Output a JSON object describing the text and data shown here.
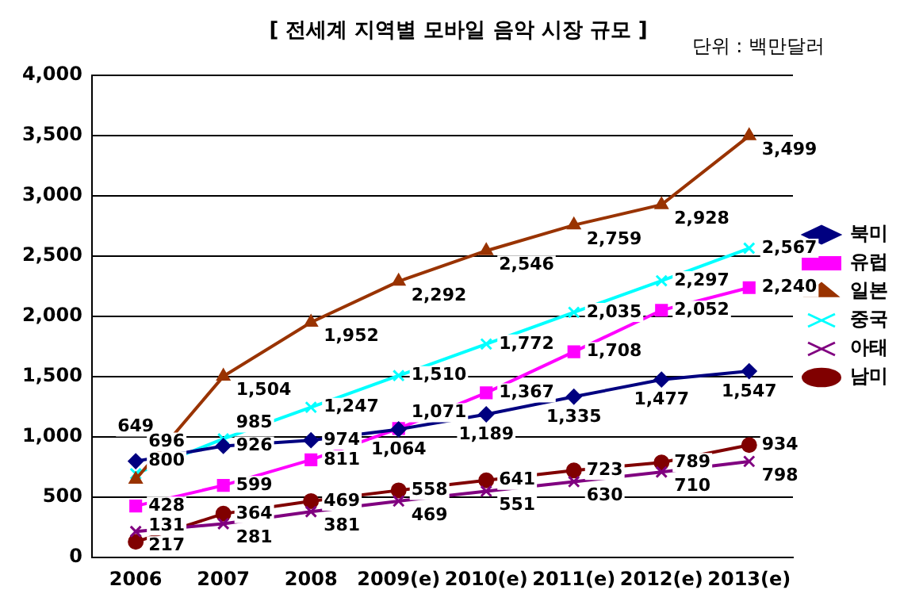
{
  "chart_data": {
    "type": "line",
    "title": "[ 전세계 지역별 모바일 음악 시장 규모 ]",
    "annotations": [
      "단위 : 백만달러"
    ],
    "categories": [
      "2006",
      "2007",
      "2008",
      "2009(e)",
      "2010(e)",
      "2011(e)",
      "2012(e)",
      "2013(e)"
    ],
    "series": [
      {
        "name": "북미",
        "color": "#000080",
        "marker": "diamond",
        "values": [
          800,
          926,
          974,
          1064,
          1189,
          1335,
          1477,
          1547
        ],
        "value_labels": [
          "800",
          "926",
          "974",
          "1,064",
          "1,189",
          "1,335",
          "1,477",
          "1,547"
        ]
      },
      {
        "name": "유럽",
        "color": "#ff00ff",
        "marker": "square",
        "values": [
          428,
          599,
          811,
          1071,
          1367,
          1708,
          2052,
          2240
        ],
        "value_labels": [
          "428",
          "599",
          "811",
          "1,071",
          "1,367",
          "1,708",
          "2,052",
          "2,240"
        ]
      },
      {
        "name": "일본",
        "color": "#993300",
        "marker": "triangle",
        "values": [
          649,
          1504,
          1952,
          2292,
          2546,
          2759,
          2928,
          3499
        ],
        "value_labels": [
          "649",
          "1,504",
          "1,952",
          "2,292",
          "2,546",
          "2,759",
          "2,928",
          "3,499"
        ]
      },
      {
        "name": "중국",
        "color": "#00ffff",
        "marker": "cross",
        "values": [
          696,
          985,
          1247,
          1510,
          1772,
          2035,
          2297,
          2567
        ],
        "value_labels": [
          "696",
          "985",
          "1,247",
          "1,510",
          "1,772",
          "2,035",
          "2,297",
          "2,567"
        ]
      },
      {
        "name": "아태",
        "color": "#800080",
        "marker": "cross",
        "values": [
          217,
          281,
          381,
          469,
          551,
          630,
          710,
          798
        ],
        "value_labels": [
          "217",
          "281",
          "381",
          "469",
          "551",
          "630",
          "710",
          "798"
        ]
      },
      {
        "name": "남미",
        "color": "#800000",
        "marker": "circle",
        "values": [
          131,
          364,
          469,
          558,
          641,
          723,
          789,
          934
        ],
        "value_labels": [
          "131",
          "364",
          "469",
          "558",
          "641",
          "723",
          "789",
          "934"
        ]
      }
    ],
    "ylim": [
      0,
      4000
    ],
    "yticks": [
      {
        "value": 0,
        "label": "0"
      },
      {
        "value": 500,
        "label": "500"
      },
      {
        "value": 1000,
        "label": "1,000"
      },
      {
        "value": 1500,
        "label": "1,500"
      },
      {
        "value": 2000,
        "label": "2,000"
      },
      {
        "value": 2500,
        "label": "2,500"
      },
      {
        "value": 3000,
        "label": "3,000"
      },
      {
        "value": 3500,
        "label": "3,500"
      },
      {
        "value": 4000,
        "label": "4,000"
      }
    ],
    "grid": "y",
    "legend": "right"
  }
}
